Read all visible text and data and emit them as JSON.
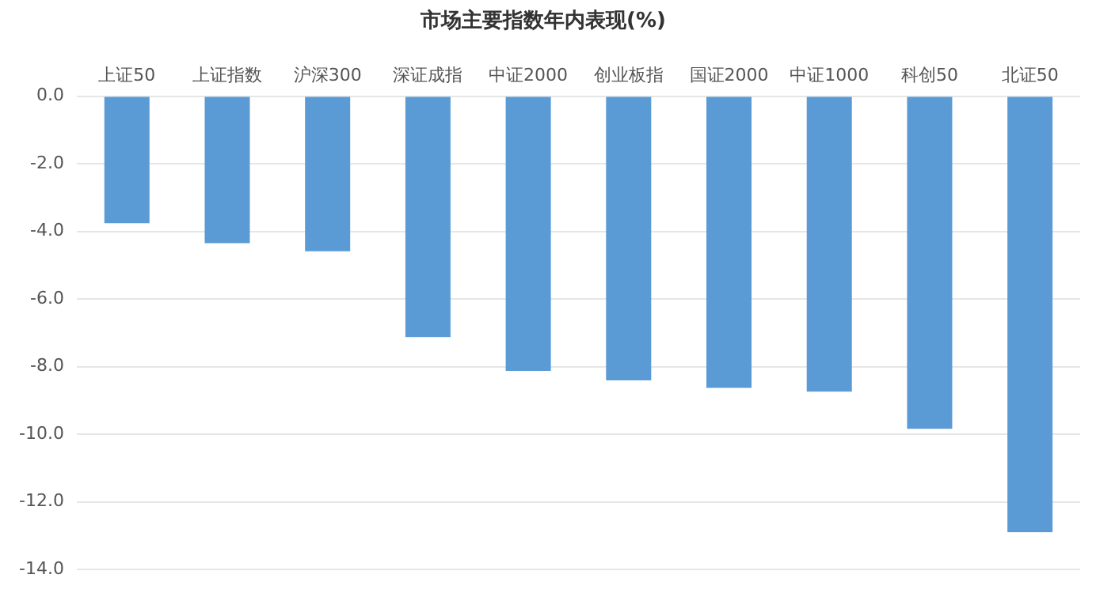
{
  "chart_data": {
    "type": "bar",
    "title": "市场主要指数年内表现(%)",
    "categories": [
      "上证50",
      "上证指数",
      "沪深300",
      "深证成指",
      "中证2000",
      "创业板指",
      "国证2000",
      "中证1000",
      "科创50",
      "北证50"
    ],
    "values": [
      -3.76,
      -4.35,
      -4.59,
      -7.13,
      -8.13,
      -8.41,
      -8.63,
      -8.74,
      -9.84,
      -12.9
    ],
    "color": "#5b9bd5",
    "ylim": [
      -14,
      0
    ],
    "yticks": [
      {
        "value": 0,
        "label": "0.0"
      },
      {
        "value": -2,
        "label": "-2.0"
      },
      {
        "value": -4,
        "label": "-4.0"
      },
      {
        "value": -6,
        "label": "-6.0"
      },
      {
        "value": -8,
        "label": "-8.0"
      },
      {
        "value": -10,
        "label": "-10.0"
      },
      {
        "value": -12,
        "label": "-12.0"
      },
      {
        "value": -14,
        "label": "-14.0"
      }
    ],
    "grid": "y",
    "legend": false
  }
}
